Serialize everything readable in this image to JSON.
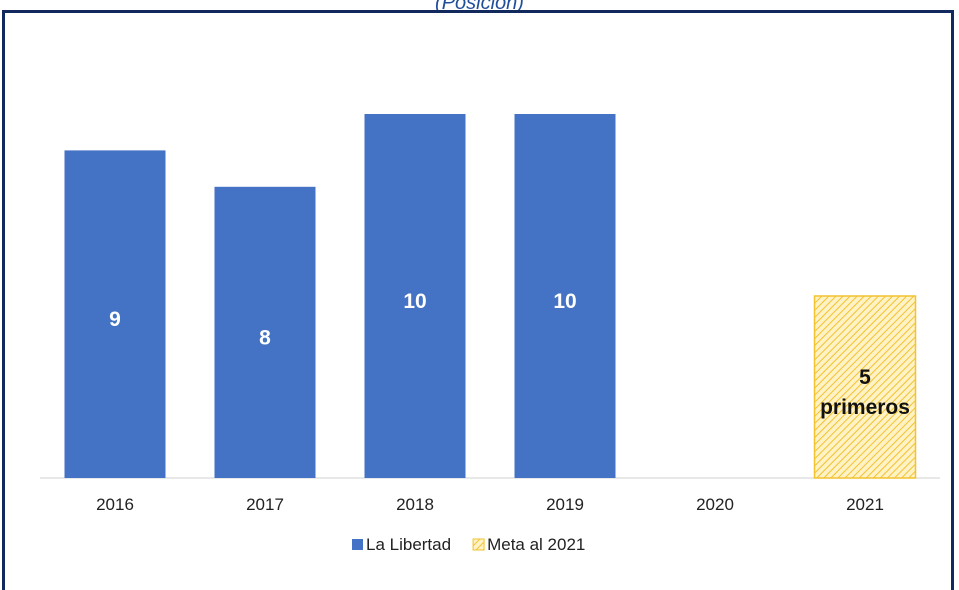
{
  "header": {
    "subtitle_fragment": "(Posición)"
  },
  "chart_data": {
    "type": "bar",
    "categories": [
      "2016",
      "2017",
      "2018",
      "2019",
      "2020",
      "2021"
    ],
    "series": [
      {
        "name": "La Libertad",
        "color": "#4472c4",
        "values": [
          9,
          8,
          10,
          10,
          null,
          null
        ],
        "labels": [
          "9",
          "8",
          "10",
          "10",
          "",
          ""
        ]
      },
      {
        "name": "Meta al 2021",
        "color": "#ffd966",
        "pattern": "hatched",
        "values": [
          null,
          null,
          null,
          null,
          null,
          5
        ],
        "labels": [
          "",
          "",
          "",
          "",
          "",
          "5 primeros"
        ]
      }
    ],
    "ylim": [
      0,
      10
    ],
    "grid": false,
    "legend_position": "bottom"
  }
}
